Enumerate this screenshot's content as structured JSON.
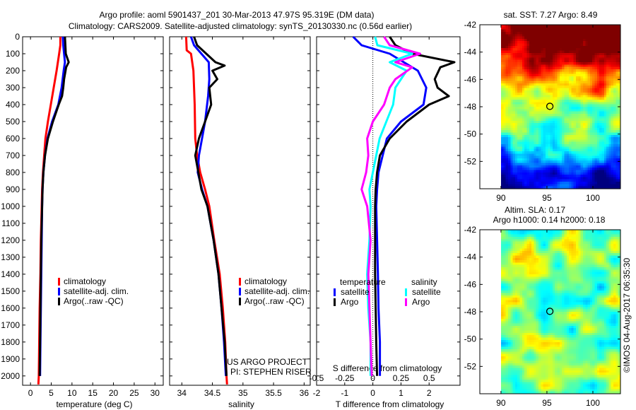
{
  "title_line1": "Argo profile: aoml 5901437_201 30-Mar-2013 47.97S 95.319E (DM data)",
  "title_line2": "Climatology: CARS2009. Satellite-adjusted climatology: synTS_20130330.nc (0.56d earlier)",
  "credit": "©IMOS 04-Aug-2017 06:35:30",
  "project_line1": "US ARGO PROJECT",
  "project_line2": "PI: STEPHEN RISER",
  "colors": {
    "climatology": "#ff0000",
    "satellite": "#0000ff",
    "argo": "#000000",
    "sat_salinity": "#00ffff",
    "argo_salinity": "#ff00ff"
  },
  "chart_data": [
    {
      "type": "line",
      "id": "temperature",
      "xlabel": "temperature (deg C)",
      "ylabel": "depth",
      "xlim": [
        -1.9,
        32
      ],
      "ylim": [
        2055,
        0
      ],
      "xticks": [
        0,
        5,
        10,
        15,
        20,
        25,
        30
      ],
      "yticks": [
        0,
        100,
        200,
        300,
        400,
        500,
        600,
        700,
        800,
        900,
        1000,
        1100,
        1200,
        1300,
        1400,
        1500,
        1600,
        1700,
        1800,
        1900,
        2000
      ],
      "legend": [
        "climatology",
        "satellite-adj. clim.",
        "Argo(..raw -QC)"
      ],
      "series": [
        {
          "name": "climatology",
          "color": "#ff0000",
          "points": [
            [
              0,
              7.2
            ],
            [
              50,
              7.2
            ],
            [
              100,
              6.9
            ],
            [
              200,
              6.3
            ],
            [
              300,
              5.6
            ],
            [
              400,
              4.9
            ],
            [
              500,
              4.2
            ],
            [
              600,
              3.6
            ],
            [
              700,
              3.3
            ],
            [
              800,
              3.0
            ],
            [
              900,
              2.8
            ],
            [
              1000,
              2.7
            ],
            [
              1200,
              2.5
            ],
            [
              1400,
              2.4
            ],
            [
              1600,
              2.2
            ],
            [
              1800,
              2.1
            ],
            [
              2000,
              2.0
            ],
            [
              2050,
              1.9
            ]
          ]
        },
        {
          "name": "satellite-adj. clim.",
          "color": "#0000ff",
          "points": [
            [
              0,
              7.8
            ],
            [
              50,
              7.9
            ],
            [
              100,
              8.1
            ],
            [
              150,
              8.3
            ],
            [
              200,
              8.0
            ],
            [
              300,
              7.5
            ],
            [
              400,
              6.7
            ],
            [
              500,
              5.2
            ],
            [
              600,
              4.1
            ],
            [
              700,
              3.5
            ],
            [
              800,
              3.1
            ],
            [
              900,
              2.9
            ],
            [
              1000,
              2.8
            ],
            [
              1200,
              2.7
            ],
            [
              1400,
              2.6
            ],
            [
              1600,
              2.5
            ],
            [
              1800,
              2.4
            ],
            [
              2000,
              2.3
            ]
          ]
        },
        {
          "name": "Argo(..raw -QC)",
          "color": "#000000",
          "points": [
            [
              0,
              8.3
            ],
            [
              50,
              8.4
            ],
            [
              100,
              8.5
            ],
            [
              150,
              9.2
            ],
            [
              180,
              8.6
            ],
            [
              250,
              8.1
            ],
            [
              300,
              7.9
            ],
            [
              350,
              7.6
            ],
            [
              400,
              6.8
            ],
            [
              500,
              5.4
            ],
            [
              600,
              4.2
            ],
            [
              700,
              3.5
            ],
            [
              800,
              3.1
            ],
            [
              900,
              2.9
            ],
            [
              1000,
              2.8
            ],
            [
              1200,
              2.6
            ],
            [
              1400,
              2.5
            ],
            [
              1600,
              2.4
            ],
            [
              1800,
              2.3
            ],
            [
              2000,
              2.2
            ]
          ]
        }
      ]
    },
    {
      "type": "line",
      "id": "salinity",
      "xlabel": "salinity",
      "xlim": [
        33.8,
        36.1
      ],
      "ylim": [
        2055,
        0
      ],
      "xticks": [
        34,
        34.5,
        35,
        35.5,
        36
      ],
      "legend": [
        "climatology",
        "satellite-adj. clim.",
        "Argo(..raw -QC)"
      ],
      "series": [
        {
          "name": "climatology",
          "color": "#ff0000",
          "points": [
            [
              0,
              34.07
            ],
            [
              80,
              34.08
            ],
            [
              100,
              34.15
            ],
            [
              200,
              34.19
            ],
            [
              300,
              34.2
            ],
            [
              400,
              34.21
            ],
            [
              600,
              34.22
            ],
            [
              700,
              34.25
            ],
            [
              800,
              34.3
            ],
            [
              900,
              34.38
            ],
            [
              1000,
              34.45
            ],
            [
              1200,
              34.53
            ],
            [
              1400,
              34.62
            ],
            [
              1600,
              34.67
            ],
            [
              1800,
              34.71
            ],
            [
              2000,
              34.73
            ],
            [
              2050,
              34.74
            ]
          ]
        },
        {
          "name": "satellite-adj. clim.",
          "color": "#0000ff",
          "points": [
            [
              0,
              34.15
            ],
            [
              50,
              34.2
            ],
            [
              100,
              34.32
            ],
            [
              150,
              34.44
            ],
            [
              250,
              34.45
            ],
            [
              350,
              34.43
            ],
            [
              500,
              34.38
            ],
            [
              600,
              34.33
            ],
            [
              700,
              34.28
            ],
            [
              800,
              34.26
            ],
            [
              900,
              34.33
            ],
            [
              1000,
              34.42
            ],
            [
              1200,
              34.52
            ],
            [
              1400,
              34.6
            ],
            [
              1600,
              34.65
            ],
            [
              1800,
              34.69
            ],
            [
              2000,
              34.72
            ]
          ]
        },
        {
          "name": "Argo(..raw -QC)",
          "color": "#000000",
          "points": [
            [
              0,
              34.2
            ],
            [
              50,
              34.25
            ],
            [
              100,
              34.4
            ],
            [
              150,
              34.55
            ],
            [
              170,
              34.7
            ],
            [
              200,
              34.5
            ],
            [
              250,
              34.58
            ],
            [
              300,
              34.45
            ],
            [
              400,
              34.48
            ],
            [
              500,
              34.38
            ],
            [
              600,
              34.28
            ],
            [
              700,
              34.22
            ],
            [
              800,
              34.27
            ],
            [
              900,
              34.32
            ],
            [
              1000,
              34.42
            ],
            [
              1200,
              34.52
            ],
            [
              1400,
              34.6
            ],
            [
              1600,
              34.65
            ],
            [
              1800,
              34.7
            ],
            [
              2000,
              34.73
            ]
          ]
        }
      ]
    },
    {
      "type": "line",
      "id": "difference",
      "xlabel": "T difference from climatology",
      "x2label": "S difference from climatology",
      "xlim": [
        -2,
        3.1
      ],
      "ylim": [
        2055,
        0
      ],
      "xticks": [
        -2,
        -1,
        0,
        1,
        2
      ],
      "x2ticks": [
        -0.5,
        -0.25,
        0,
        0.25,
        0.5
      ],
      "x2ticklabels": [
        "-0.5",
        "-0.25",
        "0",
        "0.25",
        "0.5"
      ],
      "legend_temperature": {
        "title": "temperature",
        "items": [
          "satellite",
          "Argo"
        ]
      },
      "legend_salinity": {
        "title": "salinity",
        "items": [
          "satellite",
          "Argo"
        ]
      },
      "series": [
        {
          "name": "temperature satellite",
          "axis": "T",
          "color": "#0000ff",
          "points": [
            [
              0,
              -0.7
            ],
            [
              50,
              -0.4
            ],
            [
              100,
              0.6
            ],
            [
              200,
              1.6
            ],
            [
              300,
              1.9
            ],
            [
              400,
              1.8
            ],
            [
              500,
              1.0
            ],
            [
              600,
              0.5
            ],
            [
              700,
              0.35
            ],
            [
              800,
              0.2
            ],
            [
              900,
              0.15
            ],
            [
              1000,
              0.12
            ],
            [
              1200,
              0.15
            ],
            [
              1400,
              0.18
            ],
            [
              1600,
              0.2
            ],
            [
              1800,
              0.25
            ],
            [
              2000,
              0.25
            ]
          ]
        },
        {
          "name": "temperature Argo",
          "axis": "T",
          "color": "#000000",
          "points": [
            [
              0,
              0.6
            ],
            [
              50,
              0.8
            ],
            [
              100,
              1.4
            ],
            [
              150,
              2.9
            ],
            [
              180,
              2.4
            ],
            [
              250,
              2.2
            ],
            [
              300,
              2.3
            ],
            [
              350,
              2.7
            ],
            [
              400,
              2.0
            ],
            [
              500,
              1.2
            ],
            [
              600,
              0.6
            ],
            [
              700,
              0.25
            ],
            [
              800,
              0.15
            ],
            [
              900,
              0.1
            ],
            [
              1000,
              0.08
            ],
            [
              1200,
              0.08
            ],
            [
              1400,
              0.08
            ],
            [
              1600,
              0.1
            ],
            [
              1800,
              0.12
            ],
            [
              2000,
              0.15
            ]
          ]
        },
        {
          "name": "salinity satellite",
          "axis": "S",
          "color": "#00ffff",
          "points": [
            [
              0,
              0.02
            ],
            [
              50,
              0.04
            ],
            [
              100,
              0.35
            ],
            [
              150,
              0.15
            ],
            [
              200,
              0.3
            ],
            [
              300,
              0.2
            ],
            [
              400,
              0.18
            ],
            [
              500,
              0.12
            ],
            [
              600,
              0.06
            ],
            [
              700,
              0.03
            ],
            [
              800,
              0.0
            ],
            [
              900,
              -0.03
            ],
            [
              1000,
              -0.02
            ],
            [
              1200,
              -0.03
            ],
            [
              1400,
              -0.05
            ],
            [
              1600,
              -0.04
            ],
            [
              1800,
              -0.02
            ],
            [
              2000,
              -0.02
            ]
          ]
        },
        {
          "name": "salinity Argo",
          "axis": "S",
          "color": "#ff00ff",
          "points": [
            [
              0,
              0.1
            ],
            [
              50,
              0.15
            ],
            [
              100,
              0.42
            ],
            [
              150,
              0.2
            ],
            [
              180,
              0.35
            ],
            [
              250,
              0.2
            ],
            [
              300,
              0.15
            ],
            [
              400,
              0.1
            ],
            [
              500,
              0.0
            ],
            [
              600,
              -0.05
            ],
            [
              700,
              -0.04
            ],
            [
              800,
              -0.06
            ],
            [
              900,
              -0.1
            ],
            [
              1000,
              -0.05
            ],
            [
              1200,
              -0.02
            ],
            [
              1400,
              -0.04
            ],
            [
              1600,
              -0.03
            ],
            [
              1800,
              -0.02
            ],
            [
              2000,
              -0.01
            ]
          ]
        }
      ]
    },
    {
      "type": "heatmap",
      "id": "sst-map",
      "title": "sat. SST: 7.27 Argo: 8.49",
      "xlim": [
        87.7,
        103
      ],
      "ylim": [
        -54,
        -42
      ],
      "xticks": [
        90,
        95,
        100
      ],
      "yticks": [
        -42,
        -44,
        -46,
        -48,
        -50,
        -52
      ],
      "marker": {
        "lon": 95.319,
        "lat": -47.97
      }
    },
    {
      "type": "heatmap",
      "id": "sla-map",
      "title_line1": "Altim. SLA: 0.17",
      "title_line2": "Argo h1000: 0.14 h2000: 0.18",
      "xlim": [
        87.7,
        103
      ],
      "ylim": [
        -54,
        -42
      ],
      "xticks": [
        90,
        95,
        100
      ],
      "yticks": [
        -42,
        -44,
        -46,
        -48,
        -50,
        -52
      ],
      "marker": {
        "lon": 95.319,
        "lat": -47.97
      }
    }
  ]
}
